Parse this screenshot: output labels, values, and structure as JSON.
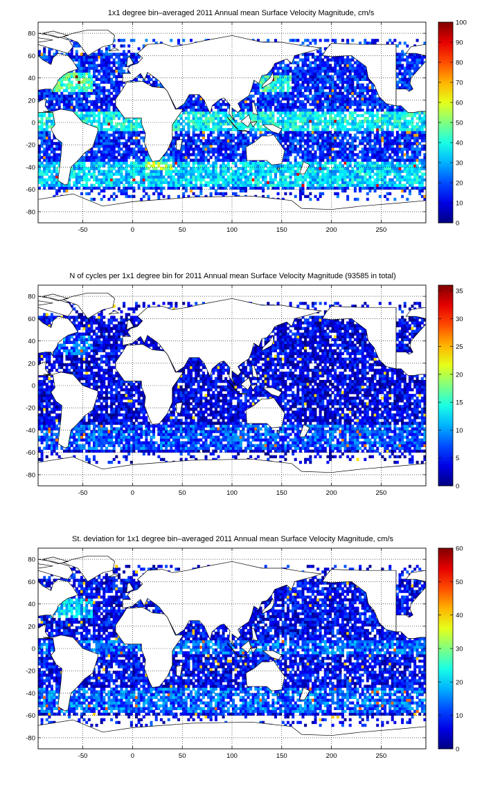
{
  "panels": [
    {
      "title": "1x1 degree bin–averaged 2011 Annual mean Surface Velocity Magnitude, cm/s",
      "colorbar_ticks": [
        "100",
        "90",
        "80",
        "70",
        "60",
        "50",
        "40",
        "30",
        "20",
        "10",
        "0"
      ]
    },
    {
      "title": "N of cycles per 1x1 degree bin for 2011 Annual mean Surface Velocity Magnitude (93585 in total)",
      "colorbar_ticks": [
        "35",
        "30",
        "25",
        "20",
        "15",
        "10",
        "5",
        "0"
      ]
    },
    {
      "title": "St. deviation for 1x1 degree bin–averaged 2011 Annual mean Surface Velocity Magnitude, cm/s",
      "colorbar_ticks": [
        "60",
        "50",
        "40",
        "30",
        "20",
        "10",
        "0"
      ]
    }
  ],
  "map_axes": {
    "x_ticks": [
      "-50",
      "0",
      "50",
      "100",
      "150",
      "200",
      "250"
    ],
    "y_ticks": [
      "80",
      "60",
      "40",
      "20",
      "0",
      "-20",
      "-40",
      "-60",
      "-80"
    ],
    "xlim": [
      -95,
      295
    ],
    "ylim": [
      -90,
      90
    ],
    "grid": true,
    "grid_style": "dotted"
  },
  "colormap": "jet",
  "colors": {
    "land": "#ffffff",
    "coastline": "#000000",
    "low": "#00008f",
    "high": "#800000"
  }
}
